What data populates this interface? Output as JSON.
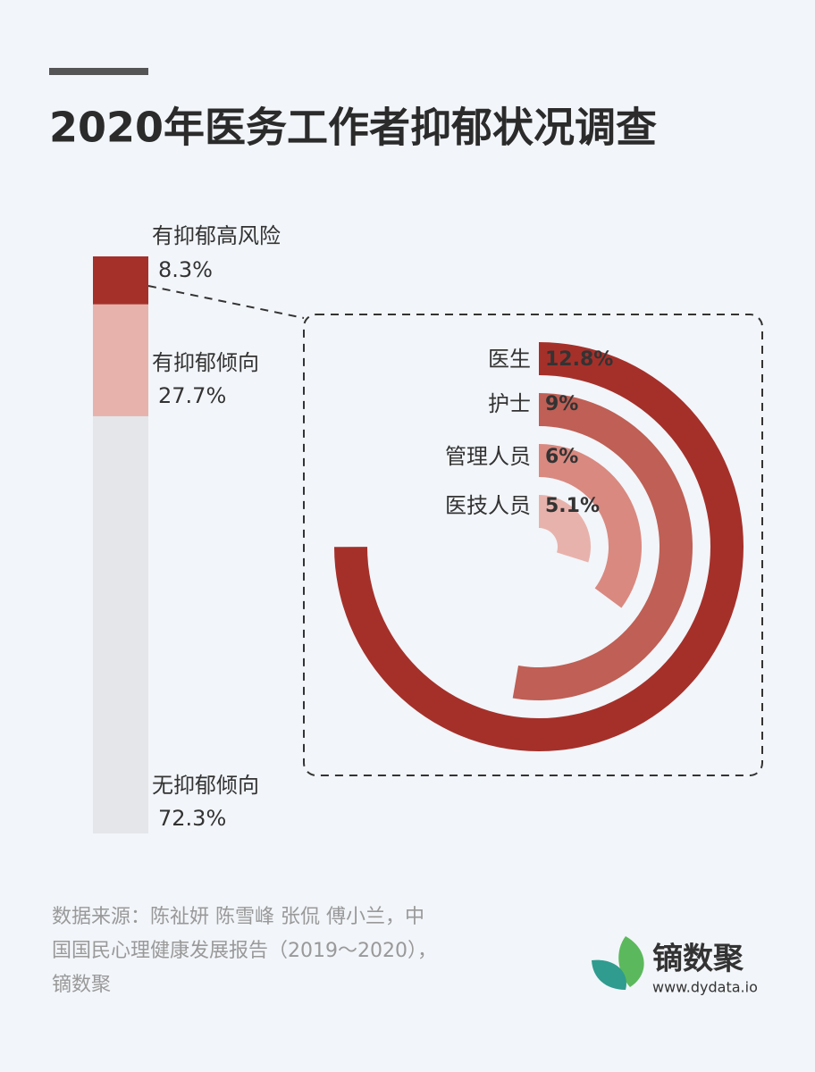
{
  "title": "2020年医务工作者抑郁状况调查",
  "chart_data": [
    {
      "type": "stacked-bar",
      "categories": [
        "有抑郁高风险",
        "有抑郁倾向",
        "无抑郁倾向"
      ],
      "values": [
        8.3,
        27.7,
        72.3
      ],
      "value_labels": [
        "8.3%",
        "27.7%",
        "72.3%"
      ],
      "colors": [
        "#a5302a",
        "#e8b2ac",
        "#e4e6ea"
      ],
      "ylim": [
        0,
        100
      ]
    },
    {
      "type": "radial-bar",
      "categories": [
        "医生",
        "护士",
        "管理人员",
        "医技人员"
      ],
      "values": [
        12.8,
        9,
        6,
        5.1
      ],
      "value_labels": [
        "12.8%",
        "9%",
        "6%",
        "5.1%"
      ],
      "colors": [
        "#a5302a",
        "#bf5f55",
        "#d98980",
        "#e8b2ac"
      ],
      "anglelim": [
        0,
        17.07
      ]
    }
  ],
  "source": [
    "数据来源：陈祉妍 陈雪峰 张侃 傅小兰，中",
    "国国民心理健康发展报告（2019～2020），",
    "镝数聚"
  ],
  "logo": {
    "name": "镝数聚",
    "url": "www.dydata.io"
  }
}
